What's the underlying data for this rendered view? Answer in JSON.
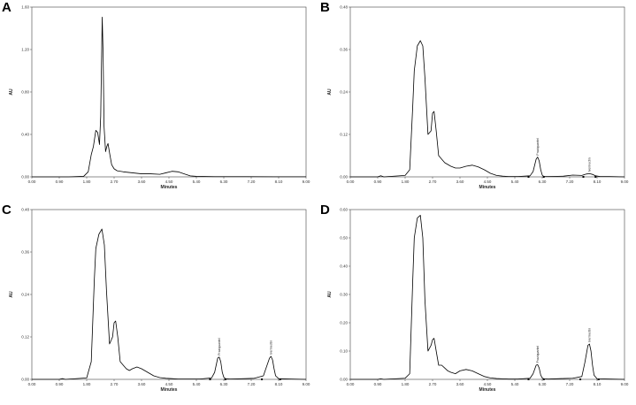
{
  "chart_data": [
    {
      "panel_label": "A",
      "type": "line",
      "xlabel": "Minutes",
      "ylabel": "AU",
      "xlim": [
        0.0,
        9.0
      ],
      "ylim": [
        0.0,
        1.68
      ],
      "x_ticks": [
        "0.00",
        "0.90",
        "1.80",
        "2.70",
        "3.60",
        "4.50",
        "5.40",
        "6.30",
        "7.20",
        "8.10",
        "9.00"
      ],
      "y_ticks": [
        "0.00",
        "0.40",
        "0.80",
        "1.20",
        "1.60"
      ],
      "series": [
        {
          "x": [
            0.0,
            1.2,
            1.7,
            1.85,
            1.95,
            2.02,
            2.1,
            2.16,
            2.22,
            2.26,
            2.29,
            2.31,
            2.34,
            2.37,
            2.42,
            2.46,
            2.5,
            2.56,
            2.62,
            2.7,
            2.8,
            3.0,
            3.3,
            3.6,
            3.9,
            4.2,
            4.4,
            4.6,
            4.8,
            5.0,
            5.2,
            5.4,
            6.0,
            7.0,
            8.0,
            9.0
          ],
          "y": [
            0.0,
            0.0,
            0.005,
            0.05,
            0.22,
            0.3,
            0.46,
            0.44,
            0.32,
            0.6,
            1.2,
            1.58,
            1.2,
            0.5,
            0.25,
            0.3,
            0.33,
            0.22,
            0.12,
            0.08,
            0.06,
            0.05,
            0.04,
            0.03,
            0.03,
            0.025,
            0.04,
            0.055,
            0.05,
            0.03,
            0.01,
            0.005,
            0.002,
            0.002,
            0.001,
            0.001
          ]
        }
      ],
      "peaks": []
    },
    {
      "panel_label": "B",
      "type": "line",
      "xlabel": "Minutes",
      "ylabel": "AU",
      "xlim": [
        0.0,
        9.0
      ],
      "ylim": [
        0.0,
        0.48
      ],
      "x_ticks": [
        "0.00",
        "0.90",
        "1.80",
        "2.70",
        "3.60",
        "4.50",
        "5.40",
        "6.30",
        "7.20",
        "8.10",
        "9.00"
      ],
      "y_ticks": [
        "0.00",
        "0.12",
        "0.24",
        "0.36",
        "0.48"
      ],
      "series": [
        {
          "x": [
            0.0,
            0.9,
            1.0,
            1.1,
            1.8,
            1.95,
            2.05,
            2.1,
            2.2,
            2.3,
            2.38,
            2.45,
            2.55,
            2.65,
            2.7,
            2.75,
            2.82,
            2.9,
            3.0,
            3.1,
            3.2,
            3.3,
            3.45,
            3.6,
            3.8,
            4.0,
            4.2,
            4.4,
            4.6,
            4.8,
            5.0,
            5.2,
            5.5,
            5.9,
            6.0,
            6.1,
            6.15,
            6.2,
            6.25,
            6.3,
            6.35,
            6.5,
            7.0,
            7.3,
            7.6,
            7.75,
            7.85,
            7.95,
            8.05,
            8.2,
            8.5,
            9.0
          ],
          "y": [
            0.0,
            0.0,
            0.003,
            0.0,
            0.004,
            0.02,
            0.2,
            0.3,
            0.37,
            0.385,
            0.37,
            0.28,
            0.12,
            0.13,
            0.18,
            0.185,
            0.13,
            0.06,
            0.05,
            0.04,
            0.035,
            0.03,
            0.025,
            0.025,
            0.03,
            0.033,
            0.028,
            0.02,
            0.01,
            0.004,
            0.002,
            0.001,
            0.001,
            0.003,
            0.015,
            0.05,
            0.056,
            0.045,
            0.02,
            0.005,
            0.001,
            0.001,
            0.002,
            0.005,
            0.004,
            0.008,
            0.009,
            0.007,
            0.003,
            0.001,
            0.001,
            0.0
          ]
        }
      ],
      "peaks": [
        {
          "label": "Praziquantel",
          "x": 6.15,
          "y": 0.056
        },
        {
          "label": "Ivermectin",
          "x": 7.85,
          "y": 0.009
        }
      ],
      "baseline_marks": [
        5.85,
        6.35,
        7.65,
        8.05
      ]
    },
    {
      "panel_label": "C",
      "type": "line",
      "xlabel": "Minutes",
      "ylabel": "AU",
      "xlim": [
        0.0,
        9.0
      ],
      "ylim": [
        0.0,
        0.48
      ],
      "x_ticks": [
        "0.00",
        "0.90",
        "1.80",
        "2.70",
        "3.60",
        "4.50",
        "5.40",
        "6.30",
        "7.20",
        "8.10",
        "9.00"
      ],
      "y_ticks": [
        "0.00",
        "0.12",
        "0.24",
        "0.36",
        "0.48"
      ],
      "series": [
        {
          "x": [
            0.0,
            0.9,
            1.0,
            1.1,
            1.8,
            1.95,
            2.05,
            2.1,
            2.2,
            2.3,
            2.38,
            2.45,
            2.55,
            2.65,
            2.7,
            2.75,
            2.82,
            2.9,
            3.0,
            3.1,
            3.2,
            3.3,
            3.45,
            3.6,
            3.8,
            4.0,
            4.2,
            4.4,
            4.6,
            4.8,
            5.0,
            5.2,
            5.5,
            5.9,
            6.0,
            6.1,
            6.15,
            6.2,
            6.25,
            6.3,
            6.35,
            6.5,
            7.0,
            7.3,
            7.6,
            7.7,
            7.8,
            7.85,
            7.9,
            7.95,
            8.0,
            8.1,
            8.5,
            9.0
          ],
          "y": [
            0.0,
            0.0,
            0.002,
            0.0,
            0.004,
            0.05,
            0.28,
            0.37,
            0.41,
            0.425,
            0.38,
            0.25,
            0.1,
            0.12,
            0.16,
            0.165,
            0.12,
            0.05,
            0.04,
            0.03,
            0.025,
            0.03,
            0.035,
            0.03,
            0.02,
            0.01,
            0.005,
            0.003,
            0.002,
            0.001,
            0.001,
            0.001,
            0.001,
            0.004,
            0.02,
            0.06,
            0.063,
            0.05,
            0.02,
            0.006,
            0.002,
            0.001,
            0.002,
            0.003,
            0.01,
            0.035,
            0.06,
            0.065,
            0.055,
            0.03,
            0.01,
            0.002,
            0.001,
            0.0
          ]
        }
      ],
      "peaks": [
        {
          "label": "Praziquantel",
          "x": 6.15,
          "y": 0.063
        },
        {
          "label": "Ivermectin",
          "x": 7.85,
          "y": 0.065
        }
      ],
      "baseline_marks": [
        5.85,
        6.35,
        7.55,
        8.15
      ]
    },
    {
      "panel_label": "D",
      "type": "line",
      "xlabel": "Minutes",
      "ylabel": "AU",
      "xlim": [
        0.0,
        9.0
      ],
      "ylim": [
        0.0,
        0.6
      ],
      "x_ticks": [
        "0.00",
        "0.90",
        "1.80",
        "2.70",
        "3.60",
        "4.50",
        "5.40",
        "6.30",
        "7.20",
        "8.10",
        "9.00"
      ],
      "y_ticks": [
        "0.00",
        "0.10",
        "0.20",
        "0.30",
        "0.40",
        "0.50",
        "0.60"
      ],
      "series": [
        {
          "x": [
            0.0,
            0.9,
            1.0,
            1.1,
            1.8,
            1.95,
            2.05,
            2.1,
            2.2,
            2.3,
            2.38,
            2.45,
            2.55,
            2.65,
            2.7,
            2.75,
            2.82,
            2.9,
            3.0,
            3.1,
            3.2,
            3.3,
            3.45,
            3.6,
            3.8,
            4.0,
            4.2,
            4.4,
            4.6,
            4.8,
            5.0,
            5.2,
            5.5,
            5.9,
            6.0,
            6.1,
            6.15,
            6.2,
            6.25,
            6.3,
            6.35,
            6.5,
            7.0,
            7.3,
            7.6,
            7.7,
            7.8,
            7.85,
            7.9,
            7.95,
            8.0,
            8.1,
            8.5,
            9.0
          ],
          "y": [
            0.0,
            0.0,
            0.002,
            0.0,
            0.004,
            0.02,
            0.35,
            0.5,
            0.57,
            0.58,
            0.5,
            0.28,
            0.1,
            0.12,
            0.14,
            0.145,
            0.1,
            0.05,
            0.05,
            0.04,
            0.03,
            0.025,
            0.02,
            0.03,
            0.035,
            0.03,
            0.02,
            0.01,
            0.005,
            0.003,
            0.002,
            0.001,
            0.001,
            0.004,
            0.02,
            0.05,
            0.052,
            0.04,
            0.015,
            0.005,
            0.002,
            0.001,
            0.003,
            0.004,
            0.01,
            0.06,
            0.12,
            0.125,
            0.1,
            0.05,
            0.015,
            0.002,
            0.001,
            0.0
          ]
        }
      ],
      "peaks": [
        {
          "label": "Praziquantel",
          "x": 6.15,
          "y": 0.052
        },
        {
          "label": "Ivermectin",
          "x": 7.85,
          "y": 0.125
        }
      ],
      "baseline_marks": [
        5.85,
        6.35,
        7.55,
        8.15
      ]
    }
  ]
}
